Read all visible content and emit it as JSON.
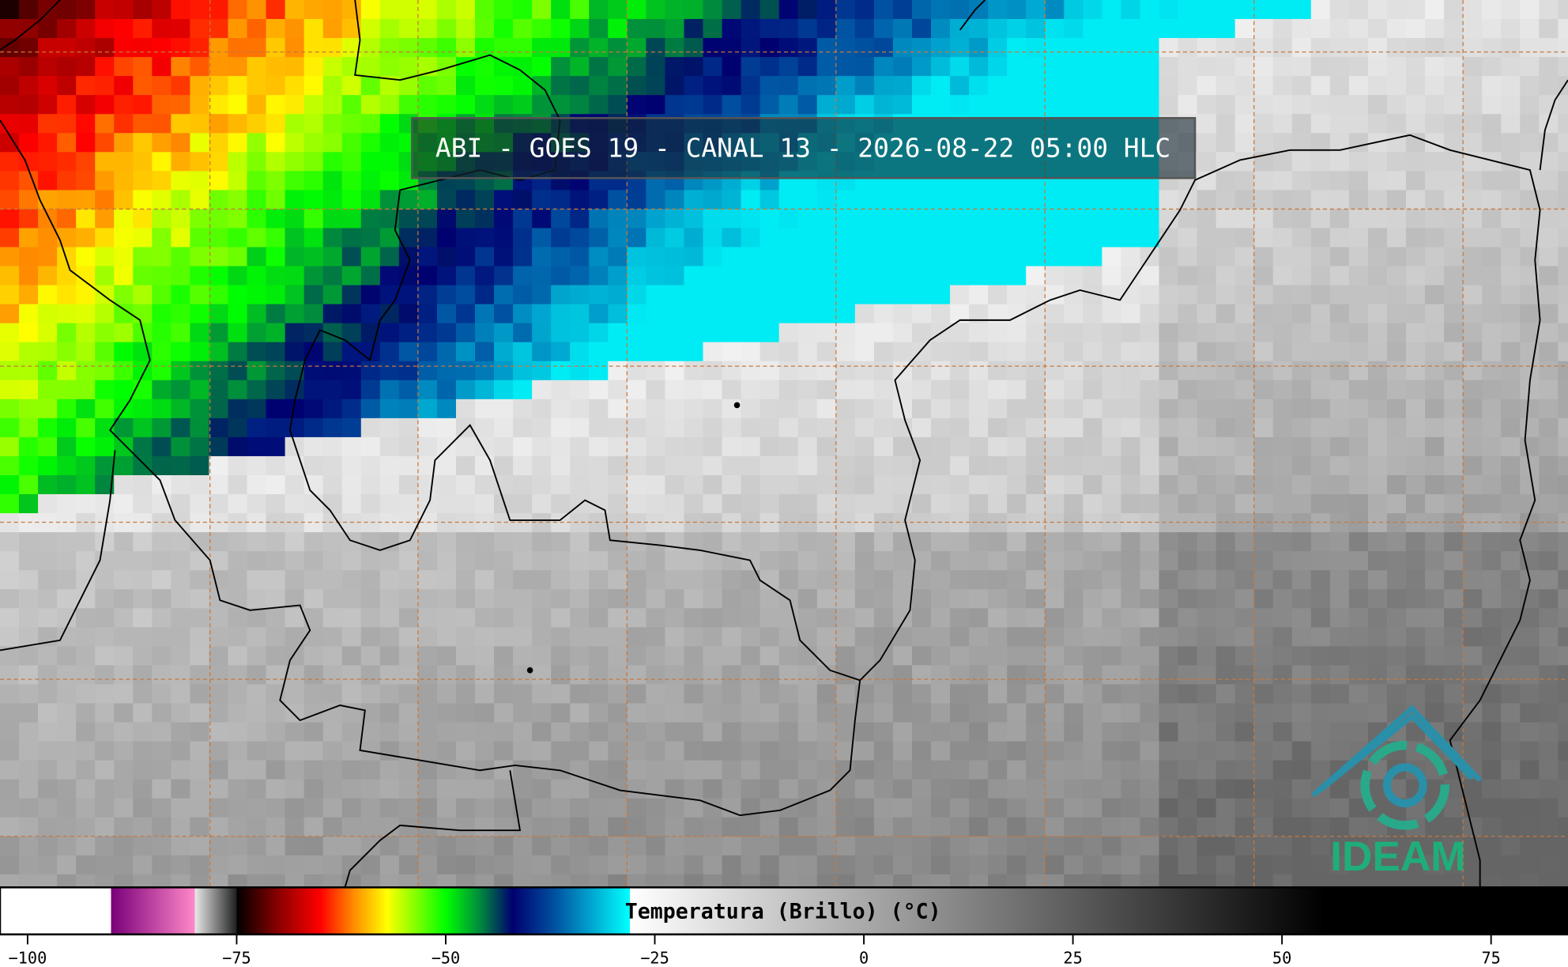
{
  "header": {
    "title": "ABI - GOES 19 - CANAL 13 - 2026-08-22 05:00 HLC"
  },
  "logo": {
    "text": "IDEAM"
  },
  "colorbar": {
    "label": "Temperatura (Brillo) (°C)",
    "lim": [
      -103.3,
      84.2
    ],
    "ticks": [
      {
        "value": -100,
        "label": "−100"
      },
      {
        "value": -75,
        "label": "−75"
      },
      {
        "value": -50,
        "label": "−50"
      },
      {
        "value": -25,
        "label": "−25"
      },
      0,
      25,
      50,
      75
    ]
  }
}
